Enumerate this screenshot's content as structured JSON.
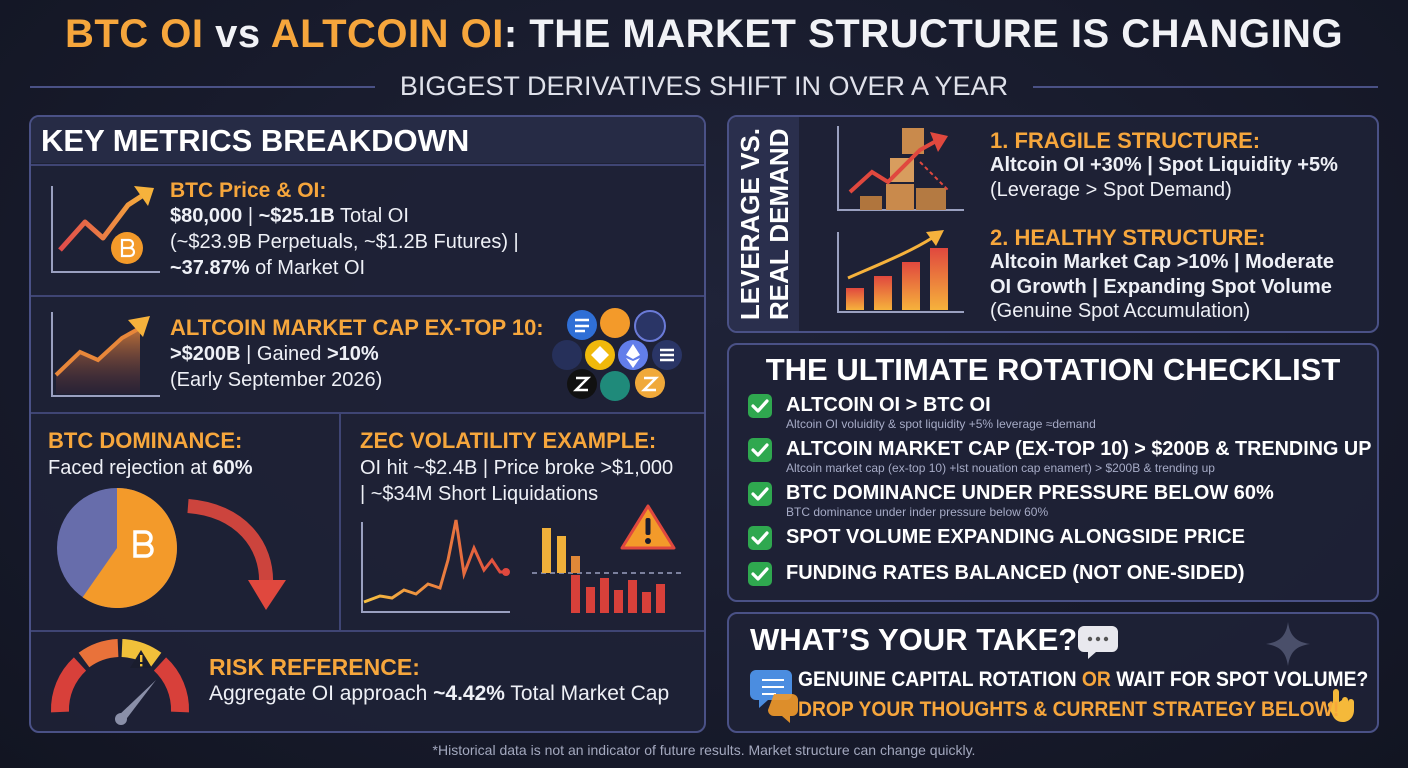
{
  "header": {
    "title": [
      {
        "text": "BTC OI",
        "accent": true
      },
      {
        "text": " vs "
      },
      {
        "text": "ALTCOIN OI",
        "accent": true
      },
      {
        "text": ": THE MARKET STRUCTURE IS CHANGING"
      }
    ],
    "subtitle": "BIGGEST DERIVATIVES SHIFT IN OVER A YEAR"
  },
  "key_metrics": {
    "title": "KEY METRICS BREAKDOWN",
    "btc": {
      "heading": "BTC Price & OI:",
      "lines": [
        [
          {
            "text": "$80,000",
            "bold": true
          },
          {
            "text": " | "
          },
          {
            "text": "~$25.1B",
            "bold": true
          },
          {
            "text": " Total OI"
          }
        ],
        [
          {
            "text": "(~$23.9B Perpetuals, ~$1.2B Futures) |"
          }
        ],
        [
          {
            "text": "~37.87%",
            "bold": true
          },
          {
            "text": " of Market OI"
          }
        ]
      ]
    },
    "altcoin": {
      "heading": "ALTCOIN MARKET CAP EX-TOP 10:",
      "lines": [
        [
          {
            "text": ">$200B",
            "bold": true
          },
          {
            "text": " | Gained "
          },
          {
            "text": ">10%",
            "bold": true
          }
        ],
        [
          {
            "text": "(Early September 2026)"
          }
        ]
      ]
    },
    "dominance": {
      "heading": "BTC DOMINANCE:",
      "lines": [
        [
          {
            "text": "Faced rejection at "
          },
          {
            "text": "60%",
            "bold": true
          }
        ]
      ]
    },
    "zec": {
      "heading": "ZEC VOLATILITY EXAMPLE:",
      "lines": [
        [
          {
            "text": "OI hit ~$2.4B | Price broke >$1,000"
          }
        ],
        [
          {
            "text": "| ~$34M Short Liquidations"
          }
        ]
      ]
    },
    "risk": {
      "heading": "RISK REFERENCE:",
      "lines": [
        [
          {
            "text": "Aggregate OI approach "
          },
          {
            "text": "~4.42%",
            "bold": true
          },
          {
            "text": " Total Market Cap"
          }
        ]
      ]
    }
  },
  "leverage": {
    "side_label": [
      "LEVERAGE VS.",
      "REAL DEMAND"
    ],
    "items": [
      {
        "heading": "1. FRAGILE STRUCTURE:",
        "lines": [
          [
            {
              "text": "Altcoin OI +30% | Spot Liquidity +5%",
              "bold": true
            }
          ],
          [
            {
              "text": "(Leverage > Spot Demand)"
            }
          ]
        ]
      },
      {
        "heading": "2. HEALTHY STRUCTURE:",
        "lines": [
          [
            {
              "text": "Altcoin Market Cap >10% | Moderate",
              "bold": true
            }
          ],
          [
            {
              "text": "OI Growth | Expanding Spot Volume",
              "bold": true
            }
          ],
          [
            {
              "text": "(Genuine Spot Accumulation)"
            }
          ]
        ]
      }
    ]
  },
  "checklist": {
    "title": "THE ULTIMATE ROTATION CHECKLIST",
    "items": [
      {
        "text": "ALTCOIN OI > BTC OI",
        "sub": "Altcoin OI voluidity & spot liquidity +5% leverage ≈demand"
      },
      {
        "text": "ALTCOIN MARKET CAP (EX-TOP 10) > $200B & TRENDING UP",
        "sub": "Altcoin market cap (ex-top 10) +lst nouation cap enamert) > $200B & trending up"
      },
      {
        "text": "BTC DOMINANCE UNDER PRESSURE BELOW 60%",
        "sub": "BTC dominance under inder pressure below 60%"
      },
      {
        "text": "SPOT VOLUME EXPANDING ALONGSIDE PRICE"
      },
      {
        "text": "FUNDING RATES BALANCED (NOT ONE-SIDED)"
      }
    ]
  },
  "take": {
    "title": "WHAT’S YOUR TAKE?",
    "lines": [
      [
        {
          "text": "GENUINE CAPITAL ROTATION"
        },
        {
          "text": " OR ",
          "accent": true
        },
        {
          "text": "WAIT FOR SPOT VOLUME?"
        }
      ],
      [
        {
          "text": "DROP YOUR THOUGHTS & CURRENT STRATEGY BELOW!",
          "accent": true
        }
      ]
    ]
  },
  "footer": "*Historical data is not an indicator of future results. Market structure can change quickly."
}
